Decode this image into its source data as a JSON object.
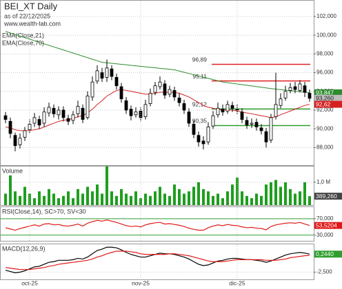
{
  "chart_data": [
    {
      "type": "candlestick",
      "title": "BEI_XT Daily",
      "subtitle": "as of 22/12/2025",
      "source": "www.wealth-lab.com",
      "open": [
        91.4,
        90.8,
        89.3,
        88.3,
        89.1,
        89.9,
        90.6,
        91.0,
        90.6,
        91.7,
        92.2,
        91.5,
        92.0,
        91.1,
        90.9,
        91.6,
        92.2,
        91.2,
        93.4,
        95.1,
        96.0,
        95.5,
        96.4,
        95.5,
        94.5,
        93.0,
        92.1,
        91.5,
        91.9,
        91.3,
        92.7,
        93.9,
        94.5,
        94.8,
        93.7,
        94.1,
        93.3,
        92.7,
        91.8,
        90.5,
        89.3,
        88.7,
        88.6,
        90.3,
        91.5,
        92.1,
        91.9,
        92.5,
        92.1,
        91.8,
        90.9,
        90.5,
        90.7,
        90.1,
        89.7,
        88.8,
        91.3,
        92.5,
        93.3,
        94.1,
        94.5,
        94.1,
        94.6,
        93.8
      ],
      "high": [
        91.8,
        91.2,
        89.6,
        89.5,
        90.2,
        91.0,
        91.7,
        91.4,
        92.3,
        92.8,
        92.6,
        92.4,
        92.4,
        91.5,
        91.9,
        93.0,
        92.6,
        94.0,
        95.6,
        96.8,
        96.5,
        97.4,
        96.8,
        95.9,
        94.9,
        93.4,
        92.5,
        92.3,
        92.3,
        93.1,
        94.3,
        95.0,
        95.6,
        95.2,
        94.6,
        94.5,
        93.8,
        93.1,
        92.2,
        90.9,
        89.7,
        89.2,
        90.7,
        91.9,
        92.8,
        92.6,
        93.0,
        92.9,
        92.6,
        92.2,
        91.3,
        91.1,
        91.1,
        90.5,
        90.1,
        91.6,
        96.0,
        93.8,
        94.6,
        94.9,
        95.0,
        95.2,
        95.0,
        94.2
      ],
      "low": [
        90.6,
        89.0,
        87.6,
        87.9,
        88.7,
        89.5,
        90.2,
        90.0,
        90.2,
        91.3,
        91.2,
        91.0,
        90.8,
        90.4,
        90.5,
        91.2,
        90.6,
        91.0,
        93.0,
        94.8,
        95.0,
        95.0,
        95.2,
        94.2,
        92.8,
        91.6,
        90.9,
        91.2,
        90.8,
        91.0,
        92.4,
        93.6,
        94.2,
        93.2,
        93.4,
        93.0,
        92.4,
        91.6,
        90.2,
        89.0,
        88.1,
        87.8,
        88.3,
        90.0,
        91.2,
        91.4,
        91.6,
        91.8,
        91.6,
        90.6,
        90.0,
        90.1,
        89.8,
        89.4,
        88.0,
        88.5,
        91.0,
        92.2,
        93.0,
        93.8,
        93.8,
        93.9,
        93.4,
        92.9
      ],
      "close": [
        91.0,
        89.5,
        88.2,
        89.0,
        89.8,
        90.5,
        91.2,
        90.4,
        91.8,
        92.3,
        91.6,
        92.0,
        91.2,
        90.8,
        91.5,
        92.4,
        91.0,
        93.5,
        95.0,
        96.2,
        95.4,
        96.5,
        95.6,
        94.6,
        93.2,
        92.0,
        91.4,
        91.8,
        91.2,
        92.6,
        93.8,
        94.6,
        95.0,
        93.6,
        94.2,
        93.4,
        92.8,
        92.0,
        90.6,
        89.4,
        88.6,
        88.4,
        90.2,
        91.4,
        92.2,
        91.8,
        92.6,
        92.2,
        92.0,
        91.0,
        90.4,
        90.6,
        90.2,
        89.8,
        88.6,
        91.2,
        92.6,
        93.2,
        94.0,
        94.4,
        94.2,
        94.8,
        93.9,
        93.26
      ],
      "close_label": "93,260",
      "series": [
        {
          "name": "EMA(Close,21)",
          "color": "#d62020",
          "last_label": "92,62",
          "values": [
            90.2,
            90.1,
            89.9,
            89.8,
            89.8,
            89.8,
            89.9,
            90.0,
            90.2,
            90.4,
            90.6,
            90.8,
            90.9,
            91.0,
            91.1,
            91.3,
            91.4,
            91.7,
            92.1,
            92.6,
            93.0,
            93.5,
            93.8,
            94.1,
            94.2,
            94.1,
            94.0,
            93.9,
            93.8,
            93.7,
            93.7,
            93.8,
            93.9,
            93.9,
            93.9,
            93.9,
            93.8,
            93.6,
            93.4,
            93.1,
            92.8,
            92.5,
            92.3,
            92.2,
            92.1,
            92.0,
            92.0,
            92.0,
            91.9,
            91.8,
            91.7,
            91.6,
            91.5,
            91.4,
            91.3,
            91.2,
            91.3,
            91.5,
            91.7,
            91.9,
            92.1,
            92.3,
            92.5,
            92.62
          ]
        },
        {
          "name": "EMA(Close,70)",
          "color": "#2e8b2e",
          "last_label": "93,847",
          "values": [
            100.4,
            100.24,
            100.07,
            99.91,
            99.74,
            99.58,
            99.41,
            99.25,
            99.08,
            98.92,
            98.75,
            98.59,
            98.42,
            98.26,
            98.09,
            97.93,
            97.76,
            97.6,
            97.43,
            97.27,
            97.1,
            97.05,
            97.0,
            96.94,
            96.89,
            96.84,
            96.78,
            96.73,
            96.68,
            96.62,
            96.57,
            96.52,
            96.46,
            96.41,
            96.36,
            96.3,
            96.17,
            96.04,
            95.91,
            95.78,
            95.65,
            95.52,
            95.39,
            95.26,
            95.13,
            95.0,
            94.93,
            94.86,
            94.79,
            94.72,
            94.65,
            94.58,
            94.51,
            94.44,
            94.37,
            94.3,
            94.24,
            94.19,
            94.13,
            94.07,
            94.02,
            93.96,
            93.9,
            93.847
          ]
        }
      ],
      "levels": [
        {
          "value": 96.89,
          "label": "96,89",
          "color": "#e02020"
        },
        {
          "value": 95.11,
          "label": "95,11",
          "color": "#e02020"
        },
        {
          "value": 92.12,
          "label": "92,12",
          "color": "#2e9e2e"
        },
        {
          "value": 90.35,
          "label": "90,35",
          "color": "#2e9e2e"
        }
      ],
      "ylim": [
        86.12,
        103.76
      ],
      "yticks": [
        {
          "value": 88,
          "label": "88,000"
        },
        {
          "value": 90,
          "label": "90,000"
        },
        {
          "value": 92,
          "label": "92,000"
        },
        {
          "value": 94,
          "label": "94,000"
        },
        {
          "value": 96,
          "label": "96,000"
        },
        {
          "value": 98,
          "label": "98,000"
        },
        {
          "value": 100,
          "label": "100,000"
        },
        {
          "value": 102,
          "label": "102,000"
        }
      ],
      "grid": true,
      "grid_color": "#c8c8c8"
    },
    {
      "type": "bar",
      "title": "Volume",
      "color": "#1e9e1e",
      "last_label": "389,260",
      "values": [
        0.5,
        1.3,
        0.6,
        0.4,
        0.8,
        0.5,
        0.3,
        0.6,
        0.4,
        0.7,
        0.5,
        0.3,
        0.4,
        0.6,
        0.3,
        0.7,
        0.5,
        0.8,
        0.6,
        0.9,
        0.5,
        1.7,
        0.6,
        0.4,
        0.7,
        0.5,
        0.4,
        0.6,
        0.3,
        0.5,
        0.4,
        0.6,
        0.8,
        0.5,
        0.4,
        0.9,
        0.7,
        0.5,
        0.6,
        0.8,
        1.0,
        0.7,
        0.6,
        0.4,
        0.5,
        0.3,
        0.6,
        0.9,
        1.2,
        0.6,
        0.4,
        0.3,
        0.5,
        0.4,
        0.9,
        1.0,
        1.1,
        0.8,
        1.0,
        0.7,
        0.5,
        0.6,
        1.0,
        0.38926
      ],
      "ylim": [
        0,
        1.72
      ],
      "yticks": [
        {
          "value": 1,
          "label": "1,0 M"
        }
      ],
      "grid": true,
      "grid_color": "#c8c8c8"
    },
    {
      "type": "line",
      "title": "RSI(Close,14), SC>70, SV<30",
      "series": [
        {
          "color": "#e01818",
          "last_label": "53,5204",
          "values": [
            48,
            45,
            42,
            46,
            49,
            52,
            55,
            52,
            57,
            58,
            55,
            56,
            53,
            52,
            54,
            57,
            52,
            59,
            63,
            66,
            64,
            67,
            64,
            61,
            57,
            53,
            51,
            52,
            50,
            55,
            58,
            60,
            61,
            57,
            58,
            56,
            54,
            51,
            47,
            44,
            42,
            42,
            48,
            52,
            55,
            53,
            56,
            54,
            53,
            50,
            48,
            49,
            47,
            46,
            43,
            51,
            55,
            57,
            59,
            60,
            59,
            61,
            57,
            53.5204
          ]
        }
      ],
      "ylim": [
        16,
        100
      ],
      "yticks": [
        {
          "value": 30,
          "label": "30,000"
        },
        {
          "value": 70,
          "label": "70,000"
        }
      ],
      "grid": true,
      "grid_color": "#2e9e2e"
    },
    {
      "type": "line",
      "title": "MACD(12,26,9)",
      "categories": [
        null,
        null,
        null,
        null,
        null,
        "oct-25",
        null,
        null,
        null,
        null,
        null,
        null,
        null,
        null,
        null,
        null,
        null,
        null,
        null,
        null,
        null,
        null,
        null,
        null,
        null,
        null,
        null,
        null,
        "nov-25",
        null,
        null,
        null,
        null,
        null,
        null,
        null,
        null,
        null,
        null,
        null,
        null,
        null,
        null,
        null,
        null,
        null,
        null,
        null,
        "dic-25",
        null,
        null,
        null,
        null,
        null,
        null,
        null,
        null,
        null,
        null,
        null,
        null,
        null,
        null,
        null
      ],
      "series": [
        {
          "color": "#000000",
          "last_label": "0,2440",
          "values": [
            -2.2,
            -2.4,
            -2.6,
            -2.5,
            -2.3,
            -2.0,
            -1.7,
            -1.6,
            -1.3,
            -1.0,
            -0.9,
            -0.7,
            -0.7,
            -0.7,
            -0.6,
            -0.4,
            -0.5,
            -0.2,
            0.3,
            0.8,
            1.0,
            1.3,
            1.3,
            1.2,
            0.9,
            0.5,
            0.2,
            0.0,
            -0.2,
            -0.2,
            0.0,
            0.2,
            0.4,
            0.3,
            0.3,
            0.2,
            0.0,
            -0.2,
            -0.5,
            -0.9,
            -1.3,
            -1.5,
            -1.4,
            -1.1,
            -0.8,
            -0.7,
            -0.5,
            -0.4,
            -0.4,
            -0.5,
            -0.6,
            -0.6,
            -0.7,
            -0.8,
            -1.0,
            -0.8,
            -0.5,
            -0.2,
            0.1,
            0.3,
            0.4,
            0.5,
            0.4,
            0.244
          ]
        },
        {
          "color": "#e01818",
          "values": [
            -1.8,
            -1.9,
            -2.0,
            -2.1,
            -2.1,
            -2.1,
            -2.0,
            -1.9,
            -1.8,
            -1.6,
            -1.5,
            -1.3,
            -1.2,
            -1.1,
            -1.0,
            -0.9,
            -0.8,
            -0.7,
            -0.5,
            -0.2,
            0.0,
            0.3,
            0.5,
            0.7,
            0.7,
            0.7,
            0.6,
            0.5,
            0.3,
            0.2,
            0.2,
            0.2,
            0.2,
            0.2,
            0.3,
            0.3,
            0.2,
            0.1,
            0.0,
            -0.2,
            -0.4,
            -0.6,
            -0.8,
            -0.9,
            -0.9,
            -0.9,
            -0.8,
            -0.7,
            -0.6,
            -0.6,
            -0.6,
            -0.6,
            -0.6,
            -0.6,
            -0.7,
            -0.7,
            -0.7,
            -0.6,
            -0.5,
            -0.3,
            -0.2,
            -0.1,
            0.0,
            0.05
          ]
        }
      ],
      "ylim": [
        -3.6,
        1.85
      ],
      "yticks": [
        {
          "value": -2.5,
          "label": "-2,500"
        }
      ],
      "grid": true,
      "grid_color": "#c8c8c8"
    }
  ]
}
